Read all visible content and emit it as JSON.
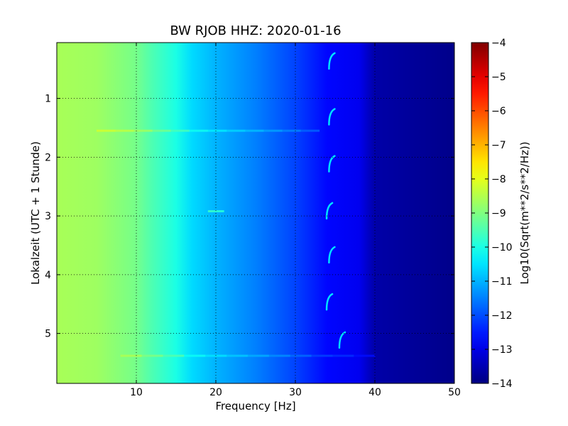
{
  "chart_data": {
    "type": "heatmap",
    "title": "BW RJOB HHZ: 2020-01-16",
    "xlabel": "Frequency [Hz]",
    "ylabel": "Lokalzeit (UTC + 1 Stunde)",
    "xlim": [
      0,
      50
    ],
    "ylim": [
      5.85,
      0.05
    ],
    "x_ticks": [
      10,
      20,
      30,
      40,
      50
    ],
    "x_tick_labels": [
      "10",
      "20",
      "30",
      "40",
      "50"
    ],
    "y_ticks": [
      1,
      2,
      3,
      4,
      5
    ],
    "y_tick_labels": [
      "1",
      "2",
      "3",
      "4",
      "5"
    ],
    "y_inverted": true,
    "grid": true,
    "colormap": "jet",
    "colorbar": {
      "label": "Log10(Sqrt(m**2/s**2/Hz))",
      "range": [
        -14,
        -4
      ],
      "ticks": [
        -4,
        -5,
        -6,
        -7,
        -8,
        -9,
        -10,
        -11,
        -12,
        -13,
        -14
      ],
      "tick_labels": [
        "−4",
        "−5",
        "−6",
        "−7",
        "−8",
        "−9",
        "−10",
        "−11",
        "−12",
        "−13",
        "−14"
      ]
    },
    "frequency_profile": [
      {
        "f": 0,
        "value": -8.6
      },
      {
        "f": 5,
        "value": -8.7
      },
      {
        "f": 10,
        "value": -9.1
      },
      {
        "f": 12,
        "value": -9.5
      },
      {
        "f": 15,
        "value": -10.0
      },
      {
        "f": 17,
        "value": -10.6
      },
      {
        "f": 20,
        "value": -11.0
      },
      {
        "f": 25,
        "value": -11.5
      },
      {
        "f": 30,
        "value": -12.1
      },
      {
        "f": 34,
        "value": -12.7
      },
      {
        "f": 38,
        "value": -12.9
      },
      {
        "f": 40,
        "value": -13.6
      },
      {
        "f": 50,
        "value": -13.9
      }
    ],
    "horizontal_features": [
      {
        "time": 1.55,
        "f_range": [
          5,
          33
        ],
        "value_offset": 0.6
      },
      {
        "time": 2.92,
        "f_range": [
          19,
          21
        ],
        "value_offset": 1.2
      },
      {
        "time": 5.38,
        "f_range": [
          8,
          40
        ],
        "value_offset": 0.5
      }
    ],
    "transient_markers": [
      {
        "time": 0.35,
        "f": 34.5
      },
      {
        "time": 1.3,
        "f": 34.5
      },
      {
        "time": 2.1,
        "f": 34.5
      },
      {
        "time": 2.9,
        "f": 34.2
      },
      {
        "time": 3.65,
        "f": 34.5
      },
      {
        "time": 4.45,
        "f": 34.2
      },
      {
        "time": 5.1,
        "f": 35.8
      }
    ]
  }
}
